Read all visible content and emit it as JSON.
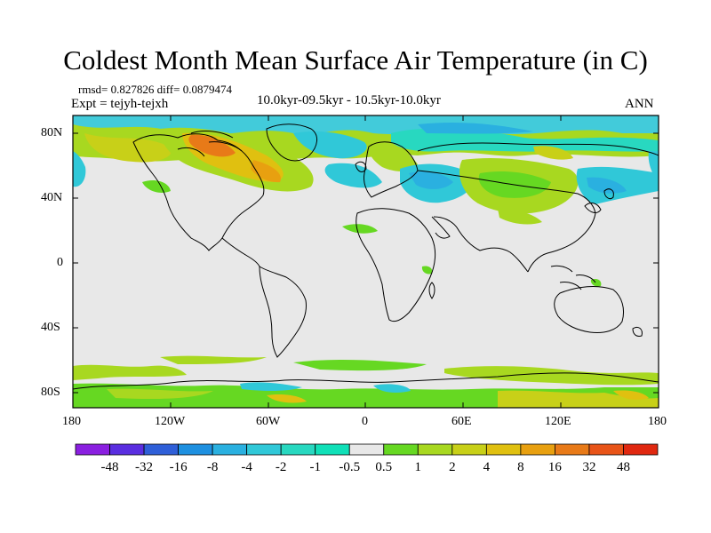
{
  "title": "Coldest Month Mean Surface Air Temperature (in C)",
  "stats_line": "rmsd= 0.827826 diff= 0.0879474",
  "expt_line": "Expt = tejyh-tejxh",
  "period_line": "10.0kyr-09.5kyr - 10.5kyr-10.0kyr",
  "season": "ANN",
  "y_tick_labels": [
    "80N",
    "40N",
    "0",
    "40S",
    "80S"
  ],
  "x_tick_labels": [
    "180",
    "120W",
    "60W",
    "0",
    "60E",
    "120E",
    "180"
  ],
  "colorbar": {
    "colors": [
      "#8a1fe0",
      "#5a2ee0",
      "#2f5fd8",
      "#1e90e0",
      "#2ab0e0",
      "#30c8d8",
      "#28d8c0",
      "#10e0b8",
      "#e8e8e8",
      "#66d822",
      "#a8d820",
      "#c8d018",
      "#e0c010",
      "#e8a010",
      "#e87a18",
      "#e85418",
      "#e02810"
    ],
    "labels": [
      "-48",
      "-32",
      "-16",
      "-8",
      "-4",
      "-2",
      "-1",
      "-0.5",
      "0.5",
      "1",
      "2",
      "4",
      "8",
      "16",
      "32",
      "48"
    ]
  },
  "background_color": "#e8e8e8"
}
